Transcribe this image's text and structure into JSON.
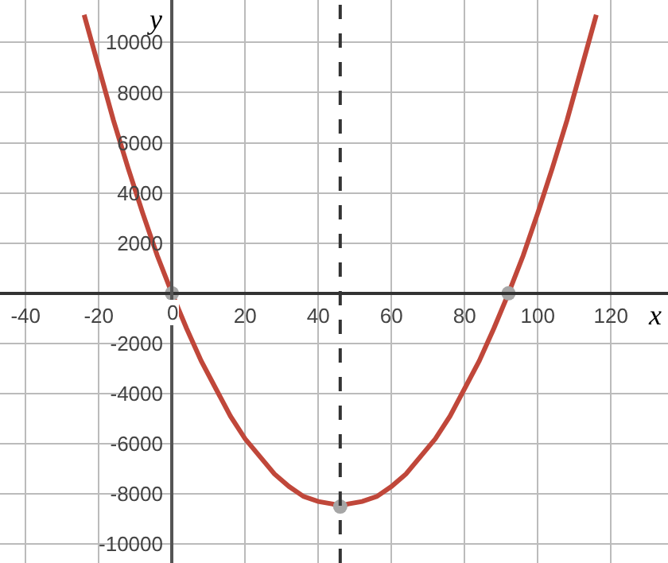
{
  "chart_data": {
    "type": "line",
    "xlabel": "x",
    "ylabel": "y",
    "xlim": [
      -47,
      135.6
    ],
    "ylim": [
      -10750,
      11690
    ],
    "xticks": [
      -40,
      -20,
      0,
      20,
      40,
      60,
      80,
      100,
      120
    ],
    "yticks": [
      -10000,
      -8000,
      -6000,
      -4000,
      -2000,
      {
        "value": 0,
        "label": null
      },
      2000,
      4000,
      6000,
      8000,
      10000
    ],
    "grid": true,
    "line_style": "solid",
    "marker": "none",
    "series": [
      {
        "type": "line",
        "color": "#c0473a",
        "x": [
          -24,
          -20,
          -16,
          -12,
          -8,
          -4,
          0,
          4,
          8,
          12,
          16,
          20,
          24,
          28,
          32,
          36,
          40,
          44,
          46,
          48,
          52,
          56,
          60,
          64,
          68,
          72,
          76,
          80,
          84,
          88,
          92,
          96,
          100,
          104,
          108,
          112,
          116
        ],
        "values": [
          11100,
          9000,
          6900,
          5000,
          3200,
          1500,
          0,
          -1400,
          -2700,
          -3800,
          -4900,
          -5800,
          -6500,
          -7200,
          -7700,
          -8100,
          -8300,
          -8400,
          -8500,
          -8400,
          -8300,
          -8100,
          -7700,
          -7200,
          -6500,
          -5800,
          -4900,
          -3800,
          -2700,
          -1400,
          0,
          1500,
          3200,
          5000,
          6900,
          9000,
          11100
        ]
      },
      {
        "type": "scatter",
        "marker": "circle",
        "color": "#a6a6a6",
        "x": [
          0,
          46,
          92
        ],
        "values": [
          0,
          -8500,
          0
        ]
      }
    ],
    "ref_lines": [
      {
        "axis": "x",
        "value": 46,
        "color": "#333333",
        "line_style": "dashed"
      }
    ]
  }
}
